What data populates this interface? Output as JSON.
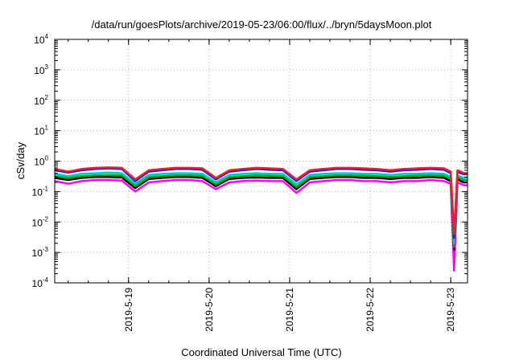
{
  "chart_data": {
    "type": "line",
    "title": "/data/run/goesPlots/archive/2019-05-23/06:00/flux/../bryn/5daysMoon.plot",
    "xlabel": "Coordinated Universal Time (UTC)",
    "ylabel": "cSv/day",
    "y_scale": "log",
    "ylim": [
      0.0001,
      10000
    ],
    "y_ticks": [
      {
        "base": "10",
        "exp": "-4"
      },
      {
        "base": "10",
        "exp": "-3"
      },
      {
        "base": "10",
        "exp": "-2"
      },
      {
        "base": "10",
        "exp": "-1"
      },
      {
        "base": "10",
        "exp": "0"
      },
      {
        "base": "10",
        "exp": "1"
      },
      {
        "base": "10",
        "exp": "2"
      },
      {
        "base": "10",
        "exp": "3"
      },
      {
        "base": "10",
        "exp": "4"
      }
    ],
    "xlim": [
      "2019-05-18 02:00",
      "2019-05-23 05:00"
    ],
    "x_ticks": [
      "2019-5-19",
      "2019-5-20",
      "2019-5-21",
      "2019-5-22",
      "2019-5-23"
    ],
    "grid": true,
    "legend": "none",
    "x": [
      "2019-05-18 02:00",
      "2019-05-18 06:00",
      "2019-05-18 10:00",
      "2019-05-18 14:00",
      "2019-05-18 18:00",
      "2019-05-18 22:00",
      "2019-05-19 02:00",
      "2019-05-19 06:00",
      "2019-05-19 10:00",
      "2019-05-19 14:00",
      "2019-05-19 18:00",
      "2019-05-19 22:00",
      "2019-05-20 02:00",
      "2019-05-20 06:00",
      "2019-05-20 10:00",
      "2019-05-20 14:00",
      "2019-05-20 18:00",
      "2019-05-20 22:00",
      "2019-05-21 02:00",
      "2019-05-21 06:00",
      "2019-05-21 10:00",
      "2019-05-21 14:00",
      "2019-05-21 18:00",
      "2019-05-21 22:00",
      "2019-05-22 02:00",
      "2019-05-22 06:00",
      "2019-05-22 10:00",
      "2019-05-22 14:00",
      "2019-05-22 18:00",
      "2019-05-22 22:00",
      "2019-05-23 00:00",
      "2019-05-23 01:00",
      "2019-05-23 02:00",
      "2019-05-23 03:00",
      "2019-05-23 04:00",
      "2019-05-23 05:00"
    ],
    "series": [
      {
        "color": "#ff1a1a",
        "values": [
          0.55,
          0.45,
          0.55,
          0.6,
          0.62,
          0.6,
          0.25,
          0.5,
          0.55,
          0.6,
          0.6,
          0.58,
          0.28,
          0.5,
          0.55,
          0.6,
          0.58,
          0.55,
          0.25,
          0.5,
          0.55,
          0.6,
          0.6,
          0.58,
          0.55,
          0.5,
          0.55,
          0.58,
          0.6,
          0.58,
          0.45,
          0.004,
          0.5,
          0.45,
          0.4,
          0.4
        ]
      },
      {
        "color": "#1a1aff",
        "values": [
          0.5,
          0.42,
          0.5,
          0.55,
          0.58,
          0.55,
          0.22,
          0.45,
          0.5,
          0.55,
          0.55,
          0.52,
          0.25,
          0.45,
          0.5,
          0.55,
          0.52,
          0.5,
          0.22,
          0.45,
          0.5,
          0.55,
          0.55,
          0.52,
          0.5,
          0.45,
          0.5,
          0.52,
          0.55,
          0.52,
          0.4,
          0.003,
          0.45,
          0.4,
          0.37,
          0.37
        ]
      },
      {
        "color": "#00c8c8",
        "values": [
          0.38,
          0.32,
          0.38,
          0.4,
          0.42,
          0.4,
          0.18,
          0.35,
          0.38,
          0.4,
          0.4,
          0.38,
          0.2,
          0.35,
          0.38,
          0.4,
          0.38,
          0.38,
          0.17,
          0.35,
          0.38,
          0.4,
          0.4,
          0.38,
          0.38,
          0.35,
          0.38,
          0.38,
          0.4,
          0.38,
          0.3,
          0.002,
          0.35,
          0.3,
          0.28,
          0.28
        ]
      },
      {
        "color": "#00b000",
        "values": [
          0.32,
          0.28,
          0.32,
          0.34,
          0.35,
          0.34,
          0.15,
          0.3,
          0.32,
          0.34,
          0.34,
          0.33,
          0.17,
          0.3,
          0.32,
          0.34,
          0.33,
          0.32,
          0.14,
          0.3,
          0.32,
          0.34,
          0.34,
          0.33,
          0.32,
          0.3,
          0.32,
          0.33,
          0.34,
          0.33,
          0.26,
          0.0015,
          0.3,
          0.26,
          0.24,
          0.24
        ]
      },
      {
        "color": "#000000",
        "values": [
          0.28,
          0.24,
          0.28,
          0.3,
          0.3,
          0.29,
          0.13,
          0.26,
          0.28,
          0.3,
          0.3,
          0.28,
          0.15,
          0.26,
          0.28,
          0.29,
          0.28,
          0.28,
          0.12,
          0.26,
          0.28,
          0.3,
          0.3,
          0.28,
          0.28,
          0.26,
          0.28,
          0.28,
          0.3,
          0.28,
          0.22,
          0.0012,
          0.26,
          0.22,
          0.2,
          0.2
        ]
      },
      {
        "color": "#ff00ff",
        "values": [
          0.22,
          0.18,
          0.22,
          0.24,
          0.24,
          0.23,
          0.1,
          0.2,
          0.22,
          0.24,
          0.24,
          0.22,
          0.12,
          0.2,
          0.22,
          0.23,
          0.22,
          0.22,
          0.09,
          0.2,
          0.22,
          0.24,
          0.24,
          0.22,
          0.22,
          0.2,
          0.22,
          0.22,
          0.24,
          0.22,
          0.18,
          0.00025,
          0.2,
          0.18,
          0.16,
          0.16
        ]
      }
    ]
  }
}
